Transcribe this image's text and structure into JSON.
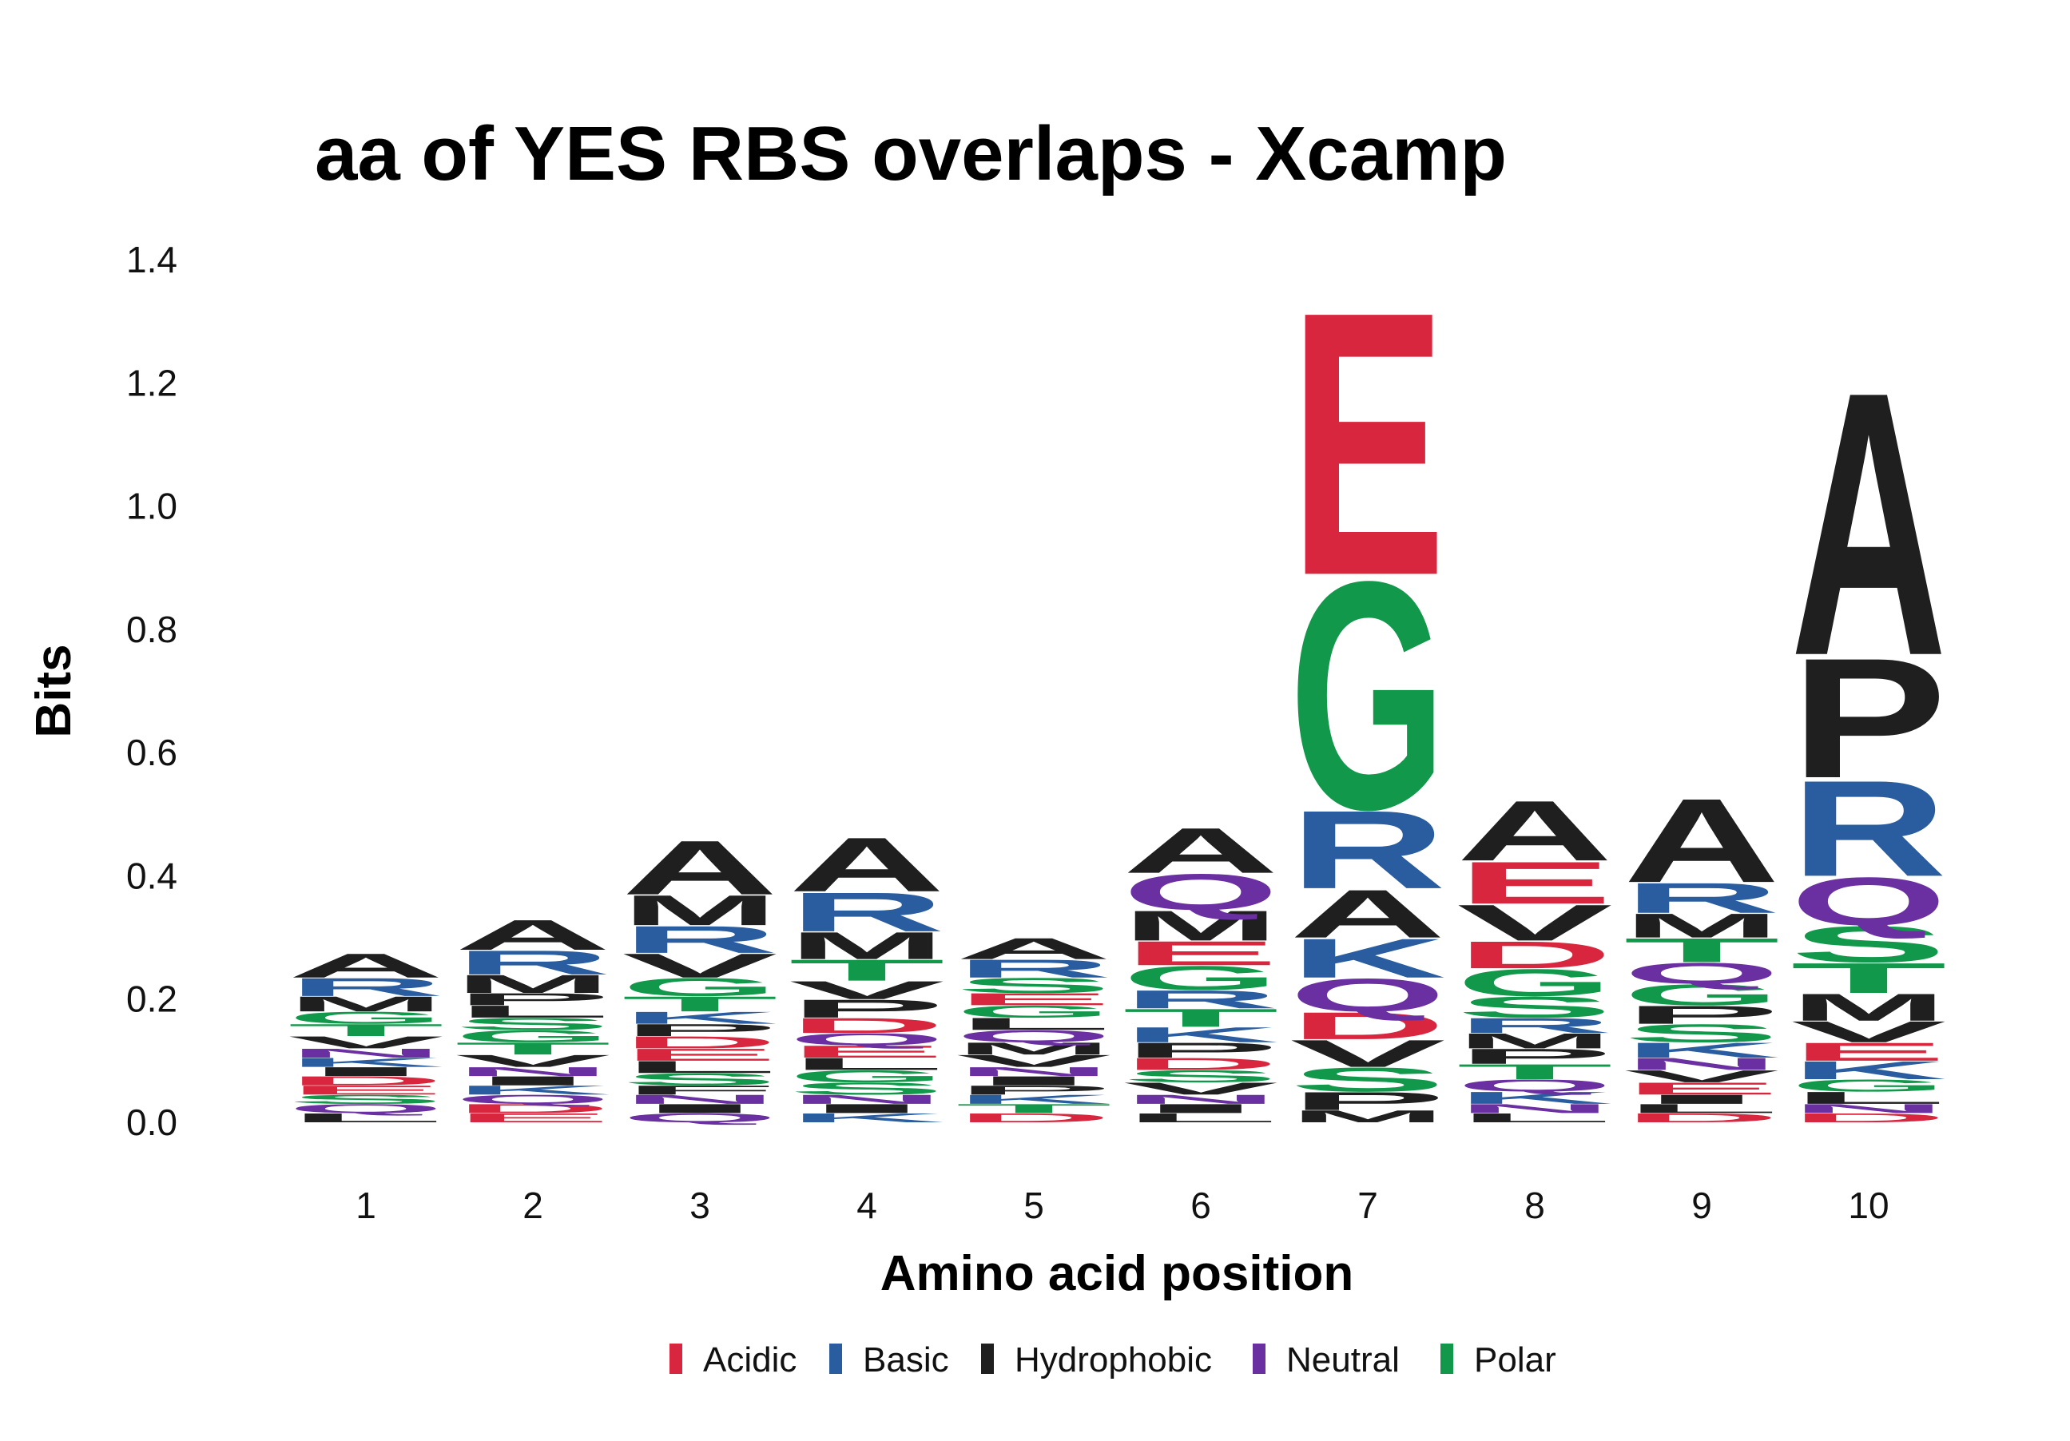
{
  "chart_data": {
    "type": "sequence-logo",
    "title": "aa of YES RBS overlaps - Xcamp",
    "xlabel": "Amino acid position",
    "ylabel": "Bits",
    "ylim": [
      0,
      1.4
    ],
    "y_ticks": [
      "0.0",
      "0.2",
      "0.4",
      "0.6",
      "0.8",
      "1.0",
      "1.2",
      "1.4"
    ],
    "positions": [
      "1",
      "2",
      "3",
      "4",
      "5",
      "6",
      "7",
      "8",
      "9",
      "10"
    ],
    "colors": {
      "Acidic": "#d7263d",
      "Basic": "#2a5d9f",
      "Hydrophobic": "#1f1f1f",
      "Neutral": "#6a2fa0",
      "Polar": "#11984a"
    },
    "legend": [
      "Acidic",
      "Basic",
      "Hydrophobic",
      "Neutral",
      "Polar"
    ],
    "legend_position": "bottom",
    "grid": false,
    "stacks": [
      [
        {
          "letter": "A",
          "class": "Hydrophobic",
          "bits": 0.04
        },
        {
          "letter": "R",
          "class": "Basic",
          "bits": 0.03
        },
        {
          "letter": "M",
          "class": "Hydrophobic",
          "bits": 0.025
        },
        {
          "letter": "V",
          "class": "Hydrophobic",
          "bits": 0.02
        },
        {
          "letter": "T",
          "class": "Polar",
          "bits": 0.02
        },
        {
          "letter": "G",
          "class": "Polar",
          "bits": 0.02
        },
        {
          "letter": "L",
          "class": "Hydrophobic",
          "bits": 0.015
        },
        {
          "letter": "Q",
          "class": "Neutral",
          "bits": 0.015
        },
        {
          "letter": "S",
          "class": "Polar",
          "bits": 0.015
        },
        {
          "letter": "E",
          "class": "Acidic",
          "bits": 0.015
        },
        {
          "letter": "D",
          "class": "Acidic",
          "bits": 0.015
        },
        {
          "letter": "I",
          "class": "Hydrophobic",
          "bits": 0.015
        },
        {
          "letter": "K",
          "class": "Basic",
          "bits": 0.015
        },
        {
          "letter": "N",
          "class": "Neutral",
          "bits": 0.015
        }
      ],
      [
        {
          "letter": "A",
          "class": "Hydrophobic",
          "bits": 0.05
        },
        {
          "letter": "R",
          "class": "Basic",
          "bits": 0.04
        },
        {
          "letter": "M",
          "class": "Hydrophobic",
          "bits": 0.03
        },
        {
          "letter": "V",
          "class": "Hydrophobic",
          "bits": 0.02
        },
        {
          "letter": "T",
          "class": "Polar",
          "bits": 0.02
        },
        {
          "letter": "G",
          "class": "Polar",
          "bits": 0.02
        },
        {
          "letter": "S",
          "class": "Polar",
          "bits": 0.02
        },
        {
          "letter": "L",
          "class": "Hydrophobic",
          "bits": 0.02
        },
        {
          "letter": "P",
          "class": "Hydrophobic",
          "bits": 0.02
        },
        {
          "letter": "E",
          "class": "Acidic",
          "bits": 0.015
        },
        {
          "letter": "D",
          "class": "Acidic",
          "bits": 0.015
        },
        {
          "letter": "Q",
          "class": "Neutral",
          "bits": 0.015
        },
        {
          "letter": "K",
          "class": "Basic",
          "bits": 0.015
        },
        {
          "letter": "I",
          "class": "Hydrophobic",
          "bits": 0.015
        },
        {
          "letter": "N",
          "class": "Neutral",
          "bits": 0.015
        }
      ],
      [
        {
          "letter": "A",
          "class": "Hydrophobic",
          "bits": 0.09
        },
        {
          "letter": "M",
          "class": "Hydrophobic",
          "bits": 0.05
        },
        {
          "letter": "R",
          "class": "Basic",
          "bits": 0.045
        },
        {
          "letter": "V",
          "class": "Hydrophobic",
          "bits": 0.04
        },
        {
          "letter": "G",
          "class": "Polar",
          "bits": 0.03
        },
        {
          "letter": "T",
          "class": "Polar",
          "bits": 0.025
        },
        {
          "letter": "S",
          "class": "Polar",
          "bits": 0.02
        },
        {
          "letter": "L",
          "class": "Hydrophobic",
          "bits": 0.02
        },
        {
          "letter": "E",
          "class": "Acidic",
          "bits": 0.02
        },
        {
          "letter": "D",
          "class": "Acidic",
          "bits": 0.02
        },
        {
          "letter": "P",
          "class": "Hydrophobic",
          "bits": 0.02
        },
        {
          "letter": "K",
          "class": "Basic",
          "bits": 0.02
        },
        {
          "letter": "Q",
          "class": "Neutral",
          "bits": 0.015
        },
        {
          "letter": "I",
          "class": "Hydrophobic",
          "bits": 0.015
        },
        {
          "letter": "N",
          "class": "Neutral",
          "bits": 0.015
        },
        {
          "letter": "F",
          "class": "Hydrophobic",
          "bits": 0.015
        }
      ],
      [
        {
          "letter": "A",
          "class": "Hydrophobic",
          "bits": 0.09
        },
        {
          "letter": "R",
          "class": "Basic",
          "bits": 0.065
        },
        {
          "letter": "M",
          "class": "Hydrophobic",
          "bits": 0.045
        },
        {
          "letter": "T",
          "class": "Polar",
          "bits": 0.035
        },
        {
          "letter": "P",
          "class": "Hydrophobic",
          "bits": 0.03
        },
        {
          "letter": "V",
          "class": "Hydrophobic",
          "bits": 0.03
        },
        {
          "letter": "D",
          "class": "Acidic",
          "bits": 0.025
        },
        {
          "letter": "S",
          "class": "Polar",
          "bits": 0.02
        },
        {
          "letter": "G",
          "class": "Polar",
          "bits": 0.02
        },
        {
          "letter": "L",
          "class": "Hydrophobic",
          "bits": 0.02
        },
        {
          "letter": "E",
          "class": "Acidic",
          "bits": 0.02
        },
        {
          "letter": "Q",
          "class": "Neutral",
          "bits": 0.02
        },
        {
          "letter": "K",
          "class": "Basic",
          "bits": 0.015
        },
        {
          "letter": "I",
          "class": "Hydrophobic",
          "bits": 0.015
        },
        {
          "letter": "N",
          "class": "Neutral",
          "bits": 0.015
        }
      ],
      [
        {
          "letter": "A",
          "class": "Hydrophobic",
          "bits": 0.035
        },
        {
          "letter": "R",
          "class": "Basic",
          "bits": 0.03
        },
        {
          "letter": "S",
          "class": "Polar",
          "bits": 0.025
        },
        {
          "letter": "V",
          "class": "Hydrophobic",
          "bits": 0.02
        },
        {
          "letter": "M",
          "class": "Hydrophobic",
          "bits": 0.02
        },
        {
          "letter": "Q",
          "class": "Neutral",
          "bits": 0.02
        },
        {
          "letter": "L",
          "class": "Hydrophobic",
          "bits": 0.02
        },
        {
          "letter": "G",
          "class": "Polar",
          "bits": 0.02
        },
        {
          "letter": "E",
          "class": "Acidic",
          "bits": 0.02
        },
        {
          "letter": "D",
          "class": "Acidic",
          "bits": 0.015
        },
        {
          "letter": "T",
          "class": "Polar",
          "bits": 0.015
        },
        {
          "letter": "K",
          "class": "Basic",
          "bits": 0.015
        },
        {
          "letter": "P",
          "class": "Hydrophobic",
          "bits": 0.015
        },
        {
          "letter": "I",
          "class": "Hydrophobic",
          "bits": 0.015
        },
        {
          "letter": "N",
          "class": "Neutral",
          "bits": 0.015
        }
      ],
      [
        {
          "letter": "A",
          "class": "Hydrophobic",
          "bits": 0.075
        },
        {
          "letter": "Q",
          "class": "Neutral",
          "bits": 0.06
        },
        {
          "letter": "M",
          "class": "Hydrophobic",
          "bits": 0.05
        },
        {
          "letter": "G",
          "class": "Polar",
          "bits": 0.04
        },
        {
          "letter": "E",
          "class": "Acidic",
          "bits": 0.04
        },
        {
          "letter": "T",
          "class": "Polar",
          "bits": 0.03
        },
        {
          "letter": "R",
          "class": "Basic",
          "bits": 0.03
        },
        {
          "letter": "P",
          "class": "Hydrophobic",
          "bits": 0.025
        },
        {
          "letter": "K",
          "class": "Basic",
          "bits": 0.025
        },
        {
          "letter": "V",
          "class": "Hydrophobic",
          "bits": 0.02
        },
        {
          "letter": "S",
          "class": "Polar",
          "bits": 0.02
        },
        {
          "letter": "D",
          "class": "Acidic",
          "bits": 0.02
        },
        {
          "letter": "L",
          "class": "Hydrophobic",
          "bits": 0.015
        },
        {
          "letter": "I",
          "class": "Hydrophobic",
          "bits": 0.015
        },
        {
          "letter": "N",
          "class": "Neutral",
          "bits": 0.015
        }
      ],
      [
        {
          "letter": "E",
          "class": "Acidic",
          "bits": 0.44
        },
        {
          "letter": "G",
          "class": "Polar",
          "bits": 0.38
        },
        {
          "letter": "R",
          "class": "Basic",
          "bits": 0.13
        },
        {
          "letter": "A",
          "class": "Hydrophobic",
          "bits": 0.08
        },
        {
          "letter": "Q",
          "class": "Neutral",
          "bits": 0.055
        },
        {
          "letter": "K",
          "class": "Basic",
          "bits": 0.065
        },
        {
          "letter": "V",
          "class": "Hydrophobic",
          "bits": 0.045
        },
        {
          "letter": "D",
          "class": "Acidic",
          "bits": 0.045
        },
        {
          "letter": "S",
          "class": "Polar",
          "bits": 0.04
        },
        {
          "letter": "P",
          "class": "Hydrophobic",
          "bits": 0.03
        },
        {
          "letter": "M",
          "class": "Hydrophobic",
          "bits": 0.02
        }
      ],
      [
        {
          "letter": "A",
          "class": "Hydrophobic",
          "bits": 0.1
        },
        {
          "letter": "E",
          "class": "Acidic",
          "bits": 0.07
        },
        {
          "letter": "V",
          "class": "Hydrophobic",
          "bits": 0.06
        },
        {
          "letter": "G",
          "class": "Polar",
          "bits": 0.045
        },
        {
          "letter": "D",
          "class": "Acidic",
          "bits": 0.045
        },
        {
          "letter": "S",
          "class": "Polar",
          "bits": 0.035
        },
        {
          "letter": "T",
          "class": "Polar",
          "bits": 0.025
        },
        {
          "letter": "P",
          "class": "Hydrophobic",
          "bits": 0.025
        },
        {
          "letter": "M",
          "class": "Hydrophobic",
          "bits": 0.025
        },
        {
          "letter": "R",
          "class": "Basic",
          "bits": 0.025
        },
        {
          "letter": "K",
          "class": "Basic",
          "bits": 0.02
        },
        {
          "letter": "Q",
          "class": "Neutral",
          "bits": 0.02
        },
        {
          "letter": "L",
          "class": "Hydrophobic",
          "bits": 0.015
        },
        {
          "letter": "N",
          "class": "Neutral",
          "bits": 0.015
        }
      ],
      [
        {
          "letter": "A",
          "class": "Hydrophobic",
          "bits": 0.14
        },
        {
          "letter": "R",
          "class": "Basic",
          "bits": 0.05
        },
        {
          "letter": "T",
          "class": "Polar",
          "bits": 0.04
        },
        {
          "letter": "M",
          "class": "Hydrophobic",
          "bits": 0.04
        },
        {
          "letter": "G",
          "class": "Polar",
          "bits": 0.035
        },
        {
          "letter": "Q",
          "class": "Neutral",
          "bits": 0.035
        },
        {
          "letter": "S",
          "class": "Polar",
          "bits": 0.03
        },
        {
          "letter": "P",
          "class": "Hydrophobic",
          "bits": 0.03
        },
        {
          "letter": "K",
          "class": "Basic",
          "bits": 0.025
        },
        {
          "letter": "E",
          "class": "Acidic",
          "bits": 0.02
        },
        {
          "letter": "V",
          "class": "Hydrophobic",
          "bits": 0.02
        },
        {
          "letter": "N",
          "class": "Neutral",
          "bits": 0.02
        },
        {
          "letter": "D",
          "class": "Acidic",
          "bits": 0.015
        },
        {
          "letter": "L",
          "class": "Hydrophobic",
          "bits": 0.015
        },
        {
          "letter": "I",
          "class": "Hydrophobic",
          "bits": 0.015
        }
      ],
      [
        {
          "letter": "A",
          "class": "Hydrophobic",
          "bits": 0.44
        },
        {
          "letter": "P",
          "class": "Hydrophobic",
          "bits": 0.2
        },
        {
          "letter": "R",
          "class": "Basic",
          "bits": 0.16
        },
        {
          "letter": "Q",
          "class": "Neutral",
          "bits": 0.08
        },
        {
          "letter": "S",
          "class": "Polar",
          "bits": 0.06
        },
        {
          "letter": "T",
          "class": "Polar",
          "bits": 0.05
        },
        {
          "letter": "M",
          "class": "Hydrophobic",
          "bits": 0.045
        },
        {
          "letter": "V",
          "class": "Hydrophobic",
          "bits": 0.035
        },
        {
          "letter": "K",
          "class": "Basic",
          "bits": 0.03
        },
        {
          "letter": "E",
          "class": "Acidic",
          "bits": 0.03
        },
        {
          "letter": "L",
          "class": "Hydrophobic",
          "bits": 0.02
        },
        {
          "letter": "G",
          "class": "Polar",
          "bits": 0.02
        },
        {
          "letter": "D",
          "class": "Acidic",
          "bits": 0.015
        },
        {
          "letter": "N",
          "class": "Neutral",
          "bits": 0.015
        }
      ]
    ]
  }
}
